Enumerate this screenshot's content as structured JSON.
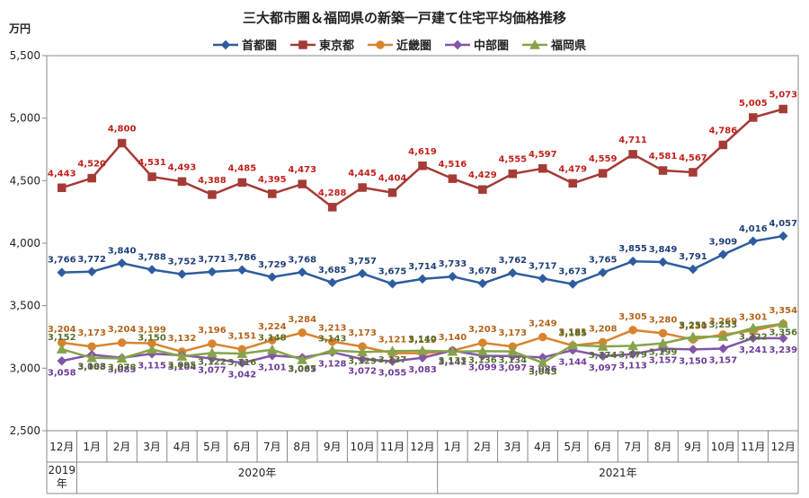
{
  "chart_data": {
    "type": "line",
    "title": "三大都市圏＆福岡県の新築一戸建て住宅平均価格推移",
    "ylabel": "万円",
    "ylim": [
      2500,
      5500
    ],
    "yticks": [
      "2,500",
      "3,000",
      "3,500",
      "4,000",
      "4,500",
      "5,000",
      "5,500"
    ],
    "categories": [
      "12月",
      "1月",
      "2月",
      "3月",
      "4月",
      "5月",
      "6月",
      "7月",
      "8月",
      "9月",
      "10月",
      "11月",
      "12月",
      "1月",
      "2月",
      "3月",
      "4月",
      "5月",
      "6月",
      "7月",
      "8月",
      "9月",
      "10月",
      "11月",
      "12月"
    ],
    "years": [
      {
        "label": "2019\n年",
        "lines": [
          "2019",
          "年"
        ],
        "span": [
          0,
          0
        ]
      },
      {
        "label": "2020年",
        "lines": [
          "2020年"
        ],
        "span": [
          1,
          12
        ]
      },
      {
        "label": "2021年",
        "lines": [
          "2021年"
        ],
        "span": [
          13,
          24
        ]
      }
    ],
    "legend_position": "top",
    "grid": false,
    "series": [
      {
        "name": "首都圏",
        "color": "#2e5c9e",
        "label_color": "#1f3f77",
        "marker": "diamond",
        "values": [
          3766,
          3772,
          3840,
          3788,
          3752,
          3771,
          3786,
          3729,
          3768,
          3685,
          3757,
          3675,
          3714,
          3733,
          3678,
          3762,
          3717,
          3673,
          3765,
          3855,
          3849,
          3791,
          3909,
          4016,
          4057
        ],
        "labels": [
          "3,766",
          "3,772",
          "3,840",
          "3,788",
          "3,752",
          "3,771",
          "3,786",
          "3,729",
          "3,768",
          "3,685",
          "3,757",
          "3,675",
          "3,714",
          "3,733",
          "3,678",
          "3,762",
          "3,717",
          "3,673",
          "3,765",
          "3,855",
          "3,849",
          "3,791",
          "3,909",
          "4,016",
          "4,057"
        ]
      },
      {
        "name": "東京都",
        "color": "#a43b36",
        "label_color": "#c0211c",
        "marker": "square",
        "values": [
          4443,
          4520,
          4800,
          4531,
          4493,
          4388,
          4485,
          4395,
          4473,
          4288,
          4445,
          4404,
          4619,
          4516,
          4429,
          4555,
          4597,
          4479,
          4559,
          4711,
          4581,
          4567,
          4786,
          5005,
          5073
        ],
        "labels": [
          "4,443",
          "4,520",
          "4,800",
          "4,531",
          "4,493",
          "4,388",
          "4,485",
          "4,395",
          "4,473",
          "4,288",
          "4,445",
          "4,404",
          "4,619",
          "4,516",
          "4,429",
          "4,555",
          "4,597",
          "4,479",
          "4,559",
          "4,711",
          "4,581",
          "4,567",
          "4,786",
          "5,005",
          "5,073"
        ]
      },
      {
        "name": "近畿圏",
        "color": "#d9832e",
        "label_color": "#b4641a",
        "marker": "circle",
        "values": [
          3204,
          3173,
          3204,
          3199,
          3132,
          3196,
          3151,
          3224,
          3284,
          3213,
          3173,
          3121,
          3119,
          3140,
          3203,
          3173,
          3249,
          3181,
          3208,
          3305,
          3280,
          3230,
          3269,
          3301,
          3354
        ],
        "labels": [
          "3,204",
          "3,173",
          "3,204",
          "3,199",
          "3,132",
          "3,196",
          "3,151",
          "3,224",
          "3,284",
          "3,213",
          "3,173",
          "3,121",
          "3,119",
          "3,140",
          "3,203",
          "3,173",
          "3,249",
          "3,181",
          "3,208",
          "3,305",
          "3,280",
          "3,230",
          "3,269",
          "3,301",
          "3,354"
        ]
      },
      {
        "name": "中部圏",
        "color": "#8256a8",
        "label_color": "#6d3c98",
        "marker": "diamond",
        "values": [
          3058,
          3108,
          3083,
          3115,
          3104,
          3077,
          3042,
          3101,
          3085,
          3128,
          3072,
          3055,
          3083,
          3141,
          3099,
          3097,
          3086,
          3144,
          3097,
          3113,
          3157,
          3150,
          3157,
          3241,
          3239
        ],
        "labels": [
          "3,058",
          "3,108",
          "3,083",
          "3,115",
          "3,104",
          "3,077",
          "3,042",
          "3,101",
          "3,085",
          "3,128",
          "3,072",
          "3,055",
          "3,083",
          "3,141",
          "3,099",
          "3,097",
          "3,086",
          "3,144",
          "3,097",
          "3,113",
          "3,157",
          "3,150",
          "3,157",
          "3,241",
          "3,239"
        ]
      },
      {
        "name": "福岡県",
        "color": "#86a34a",
        "label_color": "#55702a",
        "marker": "triangle",
        "values": [
          3152,
          3083,
          3078,
          3150,
          3095,
          3122,
          3116,
          3148,
          3067,
          3143,
          3129,
          3137,
          3140,
          3133,
          3136,
          3134,
          3043,
          3185,
          3174,
          3179,
          3199,
          3251,
          3253,
          3322,
          3356
        ],
        "labels": [
          "3,152",
          "3,083",
          "3,078",
          "3,150",
          "3,095",
          "3,122",
          "3,116",
          "3,148",
          "3,067",
          "3,143",
          "3,129",
          "3,137",
          "3,140",
          "3,133",
          "3,136",
          "3,134",
          "3,043",
          "3,185",
          "3,174",
          "3,179",
          "3,199",
          "3,251",
          "3,253",
          "3,322",
          "3,356"
        ]
      }
    ]
  }
}
